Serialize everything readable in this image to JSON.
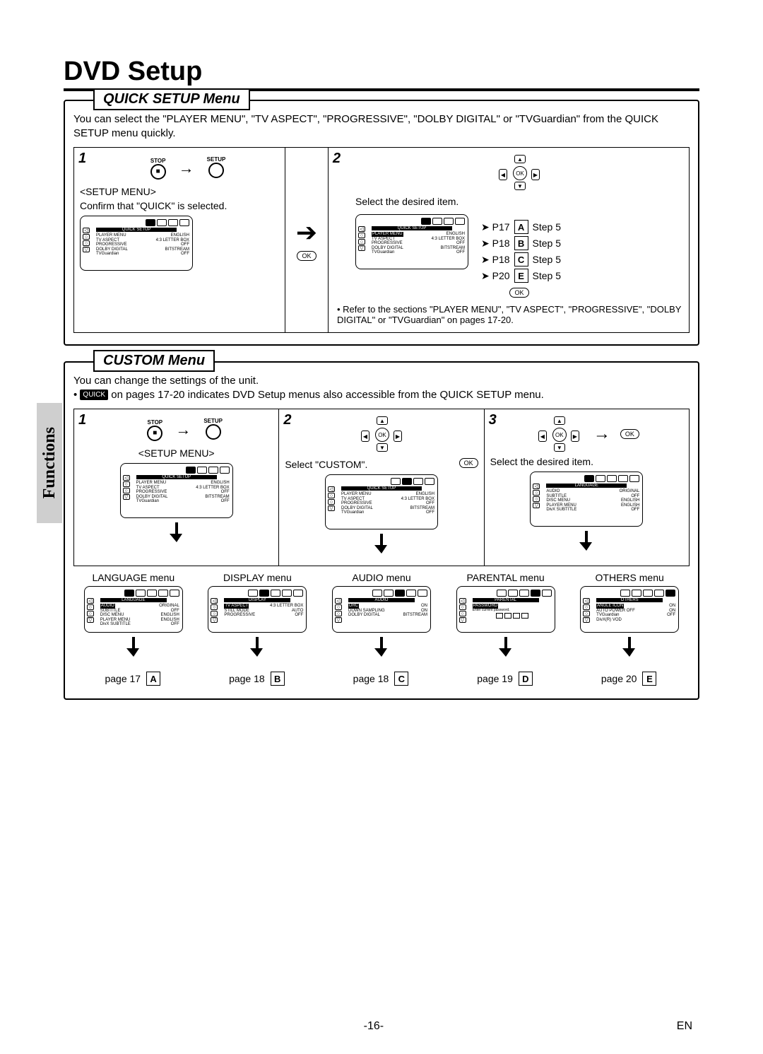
{
  "page": {
    "title": "DVD Setup",
    "side_tab": "Functions",
    "page_number_center": "-16-",
    "page_lang": "EN"
  },
  "quick": {
    "legend": "QUICK SETUP Menu",
    "intro": "You can select the \"PLAYER MENU\", \"TV ASPECT\", \"PROGRESSIVE\", \"DOLBY DIGITAL\" or \"TVGuardian\" from the QUICK SETUP menu quickly.",
    "step1": {
      "num": "1",
      "stop_label": "STOP",
      "setup_label": "SETUP",
      "menu_label": "<SETUP MENU>",
      "confirm": "Confirm that \"QUICK\" is selected."
    },
    "step2": {
      "num": "2",
      "select": "Select the desired item.",
      "refs": [
        {
          "page": "P17",
          "letter": "A",
          "step": "Step 5"
        },
        {
          "page": "P18",
          "letter": "B",
          "step": "Step 5"
        },
        {
          "page": "P18",
          "letter": "C",
          "step": "Step 5"
        },
        {
          "page": "P20",
          "letter": "E",
          "step": "Step 5"
        }
      ],
      "note": "Refer to the sections \"PLAYER MENU\", \"TV ASPECT\", \"PROGRESSIVE\", \"DOLBY DIGITAL\" or \"TVGuardian\" on pages 17-20."
    },
    "osd": {
      "header": "QUICK SETUP",
      "rows": [
        {
          "k": "PLAYER MENU",
          "v": "ENGLISH"
        },
        {
          "k": "TV ASPECT",
          "v": "4:3 LETTER BOX"
        },
        {
          "k": "PROGRESSIVE",
          "v": "OFF"
        },
        {
          "k": "DOLBY DIGITAL",
          "v": "BITSTREAM"
        },
        {
          "k": "TVGuardian",
          "v": "OFF"
        }
      ]
    }
  },
  "custom": {
    "legend": "CUSTOM Menu",
    "intro_line1": "You can change the settings of the unit.",
    "intro_quick_pill": "QUICK",
    "intro_line2": " on pages 17-20 indicates DVD Setup menus also accessible from the QUICK SETUP menu.",
    "step1": {
      "num": "1",
      "menu_label": "<SETUP MENU>",
      "stop_label": "STOP",
      "setup_label": "SETUP"
    },
    "step2": {
      "num": "2",
      "select": "Select \"CUSTOM\"."
    },
    "step3": {
      "num": "3",
      "select": "Select the desired item."
    },
    "step3_osd": {
      "header": "LANGUAGE",
      "rows": [
        {
          "k": "AUDIO",
          "v": "ORIGINAL"
        },
        {
          "k": "SUBTITLE",
          "v": "OFF"
        },
        {
          "k": "DISC MENU",
          "v": "ENGLISH"
        },
        {
          "k": "PLAYER MENU",
          "v": "ENGLISH"
        },
        {
          "k": "DivX SUBTITLE",
          "v": "OFF"
        }
      ]
    },
    "subs": [
      {
        "title": "LANGUAGE menu",
        "page": "page 17",
        "letter": "A",
        "header": "LANGUAGE",
        "rows": [
          {
            "k": "AUDIO",
            "v": "ORIGINAL"
          },
          {
            "k": "SUBTITLE",
            "v": "OFF"
          },
          {
            "k": "DISC MENU",
            "v": "ENGLISH"
          },
          {
            "k": "PLAYER MENU",
            "v": "ENGLISH"
          },
          {
            "k": "DivX SUBTITLE",
            "v": "OFF"
          }
        ],
        "hi": 0,
        "tab": 0
      },
      {
        "title": "DISPLAY menu",
        "page": "page 18",
        "letter": "B",
        "header": "DISPLAY",
        "rows": [
          {
            "k": "TV ASPECT",
            "v": "4:3 LETTER BOX"
          },
          {
            "k": "STILL MODE",
            "v": "AUTO"
          },
          {
            "k": "PROGRESSIVE",
            "v": "OFF"
          }
        ],
        "hi": 0,
        "tab": 1
      },
      {
        "title": "AUDIO menu",
        "page": "page 18",
        "letter": "C",
        "header": "AUDIO",
        "rows": [
          {
            "k": "DRC",
            "v": "ON"
          },
          {
            "k": "DOWN SAMPLING",
            "v": "ON"
          },
          {
            "k": "DOLBY DIGITAL",
            "v": "BITSTREAM"
          }
        ],
        "hi": 0,
        "tab": 2
      },
      {
        "title": "PARENTAL menu",
        "page": "page 19",
        "letter": "D",
        "header": "PARENTAL",
        "rows": [
          {
            "k": "PASSWORD",
            "v": ""
          }
        ],
        "extra": "Enter current password.",
        "hi": 0,
        "tab": 3,
        "pw": true
      },
      {
        "title": "OTHERS menu",
        "page": "page 20",
        "letter": "E",
        "header": "OTHERS",
        "rows": [
          {
            "k": "ANGLE ICON",
            "v": "ON"
          },
          {
            "k": "AUTO POWER OFF",
            "v": "ON"
          },
          {
            "k": "TVGuardian",
            "v": "OFF"
          },
          {
            "k": "DivX(R) VOD",
            "v": ""
          }
        ],
        "hi": 0,
        "tab": 4
      }
    ]
  },
  "ok_label": "OK"
}
